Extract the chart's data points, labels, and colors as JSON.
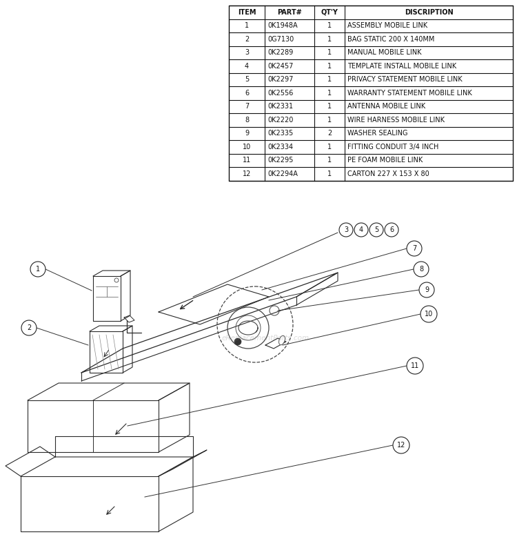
{
  "table_headers": [
    "ITEM",
    "PART#",
    "QT'Y",
    "DISCRIPTION"
  ],
  "table_rows": [
    [
      "1",
      "0K1948A",
      "1",
      "ASSEMBLY MOBILE LINK"
    ],
    [
      "2",
      "0G7130",
      "1",
      "BAG STATIC 200 X 140MM"
    ],
    [
      "3",
      "0K2289",
      "1",
      "MANUAL MOBILE LINK"
    ],
    [
      "4",
      "0K2457",
      "1",
      "TEMPLATE INSTALL MOBILE LINK"
    ],
    [
      "5",
      "0K2297",
      "1",
      "PRIVACY STATEMENT MOBILE LINK"
    ],
    [
      "6",
      "0K2556",
      "1",
      "WARRANTY STATEMENT MOBILE LINK"
    ],
    [
      "7",
      "0K2331",
      "1",
      "ANTENNA MOBILE LINK"
    ],
    [
      "8",
      "0K2220",
      "1",
      "WIRE HARNESS MOBILE LINK"
    ],
    [
      "9",
      "0K2335",
      "2",
      "WASHER SEALING"
    ],
    [
      "10",
      "0K2334",
      "1",
      "FITTING CONDUIT 3/4 INCH"
    ],
    [
      "11",
      "0K2295",
      "1",
      "PE FOAM MOBILE LINK"
    ],
    [
      "12",
      "0K2294A",
      "1",
      "CARTON 227 X 153 X 80"
    ]
  ],
  "watermark": "eReplacementParts.com",
  "bg_color": "#ffffff"
}
